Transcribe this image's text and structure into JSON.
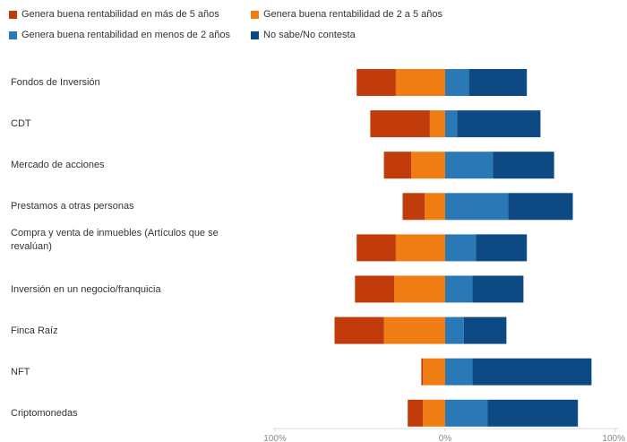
{
  "chart_data": {
    "type": "bar",
    "orientation": "horizontal",
    "stacked": "diverging",
    "categories": [
      "Fondos de Inversión",
      "CDT",
      "Mercado de acciones",
      "Prestamos a otras personas",
      "Compra y venta de inmuebles (Artículos que se revalúan)",
      "Inversión en un negocio/franquicia",
      "Finca Raíz",
      "NFT",
      "Criptomonedas"
    ],
    "series": [
      {
        "name": "Genera buena rentabilidad en más de 5 años",
        "color": "#c23b0b",
        "side": "negative",
        "values": [
          23,
          35,
          16,
          13,
          23,
          23,
          29,
          1,
          9
        ]
      },
      {
        "name": "Genera buena rentabilidad de 2 a 5 años",
        "color": "#ef7d14",
        "side": "negative",
        "values": [
          29,
          9,
          20,
          12,
          29,
          30,
          36,
          13,
          13
        ]
      },
      {
        "name": "Genera buena rentabilidad en menos de 2 años",
        "color": "#2b78b6",
        "side": "positive",
        "values": [
          14,
          7,
          28,
          37,
          18,
          16,
          11,
          16,
          25
        ]
      },
      {
        "name": "No sabe/No contesta",
        "color": "#0d4a84",
        "side": "positive",
        "values": [
          34,
          49,
          36,
          38,
          30,
          30,
          25,
          70,
          53
        ]
      }
    ],
    "x_ticks": [
      "100%",
      "0%",
      "100%"
    ],
    "xlim": [
      -100,
      100
    ],
    "legend_position": "top-left",
    "grid": false
  }
}
